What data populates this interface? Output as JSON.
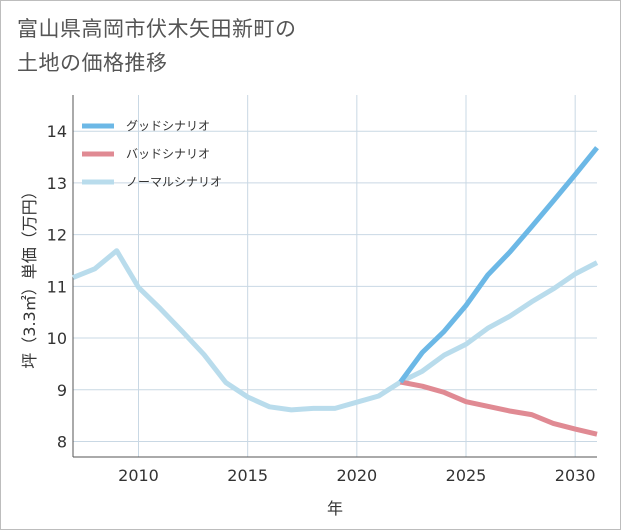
{
  "title_line1": "富山県高岡市伏木矢田新町の",
  "title_line2": "土地の価格推移",
  "chart_data": {
    "type": "line",
    "title": "富山県高岡市伏木矢田新町の土地の価格推移",
    "xlabel": "年",
    "ylabel": "坪（3.3㎡）単価（万円）",
    "xlim": [
      2007,
      2031
    ],
    "ylim": [
      7.7,
      14.7
    ],
    "grid": true,
    "legend_position": "top-left",
    "x_ticks": [
      2010,
      2015,
      2020,
      2025,
      2030
    ],
    "y_ticks": [
      8,
      9,
      10,
      11,
      12,
      13,
      14
    ],
    "series": [
      {
        "name": "グッドシナリオ",
        "color": "#6cb8e6",
        "x": [
          2022,
          2023,
          2024,
          2025,
          2026,
          2027,
          2028,
          2029,
          2030,
          2031
        ],
        "values": [
          9.15,
          9.72,
          10.13,
          10.63,
          11.22,
          11.66,
          12.15,
          12.65,
          13.16,
          13.68
        ]
      },
      {
        "name": "バッドシナリオ",
        "color": "#e08a93",
        "x": [
          2022,
          2023,
          2024,
          2025,
          2026,
          2027,
          2028,
          2029,
          2030,
          2031
        ],
        "values": [
          9.15,
          9.07,
          8.95,
          8.77,
          8.68,
          8.59,
          8.52,
          8.35,
          8.24,
          8.14
        ]
      },
      {
        "name": "ノーマルシナリオ",
        "color": "#b9dcec",
        "x": [
          2007,
          2008,
          2009,
          2010,
          2011,
          2012,
          2013,
          2014,
          2015,
          2016,
          2017,
          2018,
          2019,
          2020,
          2021,
          2022,
          2023,
          2024,
          2025,
          2026,
          2027,
          2028,
          2029,
          2030,
          2031
        ],
        "values": [
          11.17,
          11.34,
          11.69,
          10.98,
          10.57,
          10.13,
          9.68,
          9.14,
          8.86,
          8.67,
          8.61,
          8.64,
          8.64,
          8.76,
          8.88,
          9.15,
          9.36,
          9.67,
          9.88,
          10.19,
          10.42,
          10.7,
          10.95,
          11.24,
          11.46
        ]
      }
    ]
  }
}
